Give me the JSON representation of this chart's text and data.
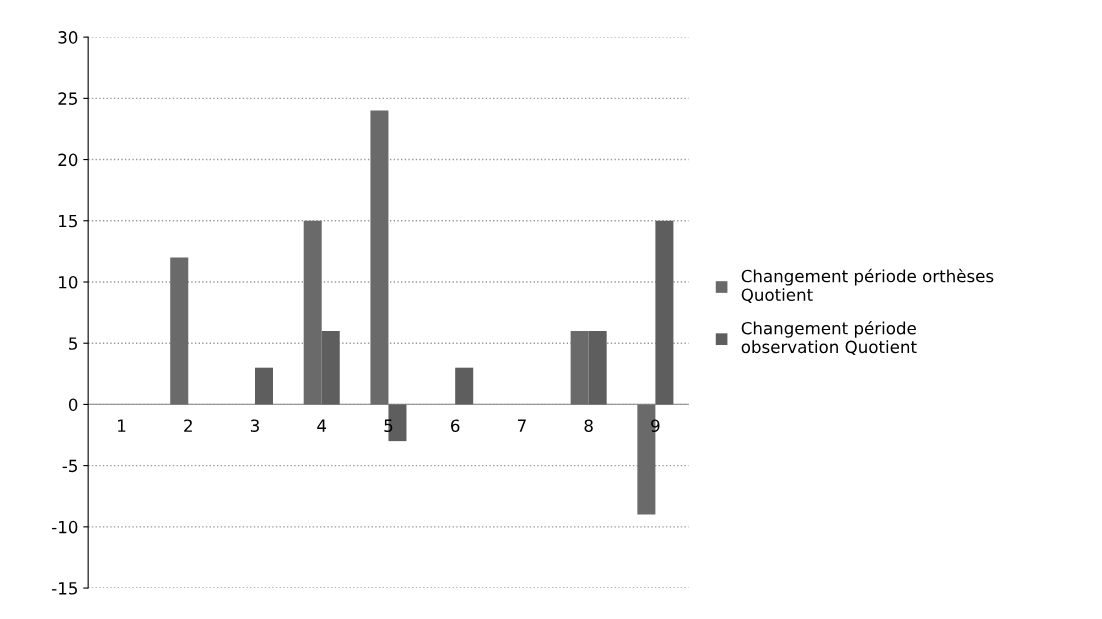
{
  "chart_data": {
    "type": "bar",
    "categories": [
      "1",
      "2",
      "3",
      "4",
      "5",
      "6",
      "7",
      "8",
      "9"
    ],
    "series": [
      {
        "name": "Changement période orthèses Quotient",
        "color": "#6a6a6a",
        "values": [
          0,
          12,
          0,
          15,
          24,
          0,
          0,
          6,
          -9
        ]
      },
      {
        "name": "Changement période observation Quotient",
        "color": "#5e5e5e",
        "values": [
          0,
          0,
          3,
          6,
          -3,
          3,
          0,
          6,
          15
        ]
      }
    ],
    "ylim": [
      -15,
      30
    ],
    "yticks": [
      -15,
      -10,
      -5,
      0,
      5,
      10,
      15,
      20,
      25,
      30
    ],
    "grid": "y",
    "legend": "right"
  }
}
